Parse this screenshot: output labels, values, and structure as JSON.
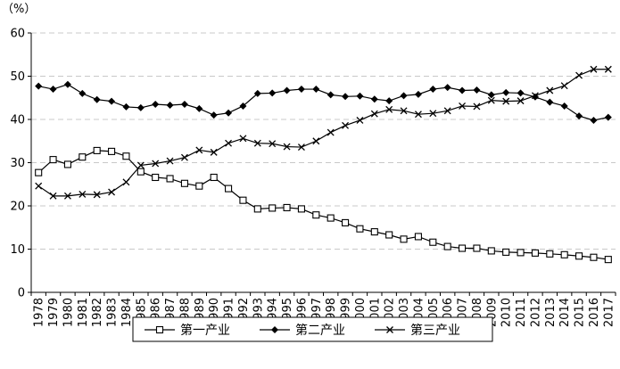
{
  "chart_data": {
    "type": "line",
    "y_unit": "（%）",
    "ylim": [
      0,
      60
    ],
    "yticks": [
      0,
      10,
      20,
      30,
      40,
      50,
      60
    ],
    "grid": "horizontal dashed",
    "legend_position": "bottom",
    "x": [
      "1978",
      "1979",
      "1980",
      "1981",
      "1982",
      "1983",
      "1984",
      "1985",
      "1986",
      "1987",
      "1988",
      "1989",
      "1990",
      "1991",
      "1992",
      "1993",
      "1994",
      "1995",
      "1996",
      "1997",
      "1998",
      "1999",
      "2000",
      "2001",
      "2002",
      "2003",
      "2004",
      "2005",
      "2006",
      "2007",
      "2008",
      "2009",
      "2010",
      "2011",
      "2012",
      "2013",
      "2014",
      "2015",
      "2016",
      "2017"
    ],
    "series": [
      {
        "name": "第一产业",
        "marker": "open-square",
        "values": [
          27.7,
          30.7,
          29.6,
          31.3,
          32.8,
          32.6,
          31.5,
          27.9,
          26.6,
          26.3,
          25.2,
          24.6,
          26.6,
          24.0,
          21.3,
          19.3,
          19.5,
          19.6,
          19.3,
          17.9,
          17.2,
          16.1,
          14.7,
          14.0,
          13.3,
          12.3,
          12.9,
          11.6,
          10.6,
          10.2,
          10.2,
          9.6,
          9.3,
          9.2,
          9.1,
          8.9,
          8.7,
          8.4,
          8.1,
          7.6
        ]
      },
      {
        "name": "第二产业",
        "marker": "filled-diamond",
        "values": [
          47.7,
          47.0,
          48.1,
          46.0,
          44.6,
          44.2,
          42.9,
          42.7,
          43.5,
          43.3,
          43.5,
          42.5,
          41.0,
          41.5,
          43.1,
          46.0,
          46.1,
          46.7,
          47.0,
          47.0,
          45.7,
          45.3,
          45.4,
          44.7,
          44.3,
          45.5,
          45.8,
          47.0,
          47.4,
          46.7,
          46.8,
          45.7,
          46.2,
          46.1,
          45.2,
          44.0,
          43.1,
          40.8,
          39.8,
          40.5
        ]
      },
      {
        "name": "第三产业",
        "marker": "cross",
        "values": [
          24.6,
          22.3,
          22.3,
          22.7,
          22.6,
          23.2,
          25.5,
          29.4,
          29.8,
          30.4,
          31.2,
          32.9,
          32.4,
          34.5,
          35.6,
          34.5,
          34.4,
          33.7,
          33.6,
          35.0,
          37.0,
          38.6,
          39.8,
          41.3,
          42.3,
          42.0,
          41.2,
          41.4,
          42.0,
          43.1,
          43.0,
          44.4,
          44.2,
          44.3,
          45.5,
          46.7,
          47.8,
          50.2,
          51.6,
          51.6
        ]
      }
    ]
  }
}
